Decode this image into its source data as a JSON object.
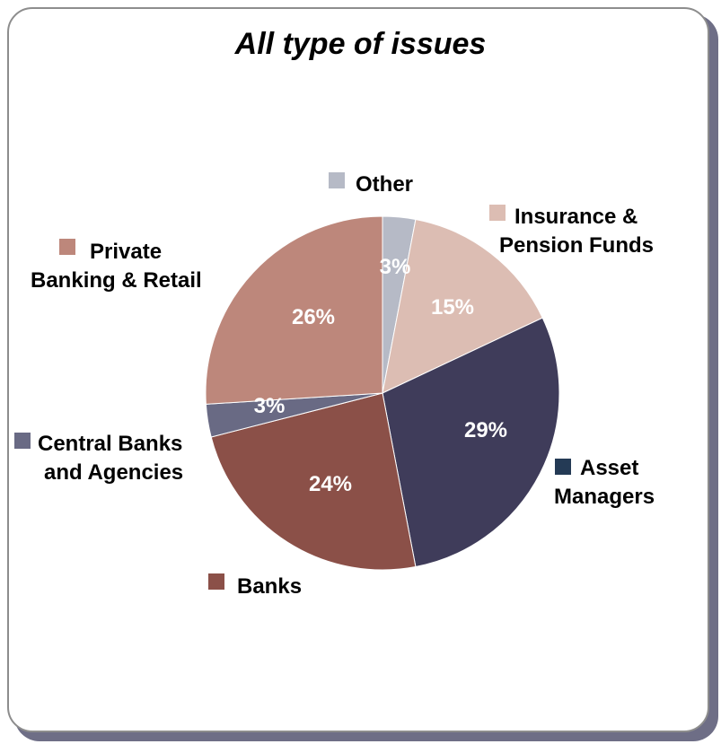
{
  "chart_data": {
    "type": "pie",
    "title": "All type of issues",
    "slices": [
      {
        "label": "Other",
        "label_lines": [
          "Other"
        ],
        "value": 3,
        "display": "3%",
        "color": "#b6bac6"
      },
      {
        "label": "Insurance & Pension Funds",
        "label_lines": [
          "Insurance &",
          "Pension Funds"
        ],
        "value": 15,
        "display": "15%",
        "color": "#dcbdb3"
      },
      {
        "label": "Asset Managers",
        "label_lines": [
          "Asset",
          "Managers"
        ],
        "value": 29,
        "display": "29%",
        "color": "#3f3c5a"
      },
      {
        "label": "Banks",
        "label_lines": [
          "Banks"
        ],
        "value": 24,
        "display": "24%",
        "color": "#8b5048"
      },
      {
        "label": "Central Banks and Agencies",
        "label_lines": [
          "Central Banks",
          "and Agencies"
        ],
        "value": 3,
        "display": "3%",
        "color": "#696a84"
      },
      {
        "label": "Private Banking & Retail",
        "label_lines": [
          "Private",
          "Banking & Retail"
        ],
        "value": 26,
        "display": "26%",
        "color": "#bd877b"
      }
    ],
    "legend_marker_colors": {
      "Asset Managers": "#243a55"
    }
  }
}
